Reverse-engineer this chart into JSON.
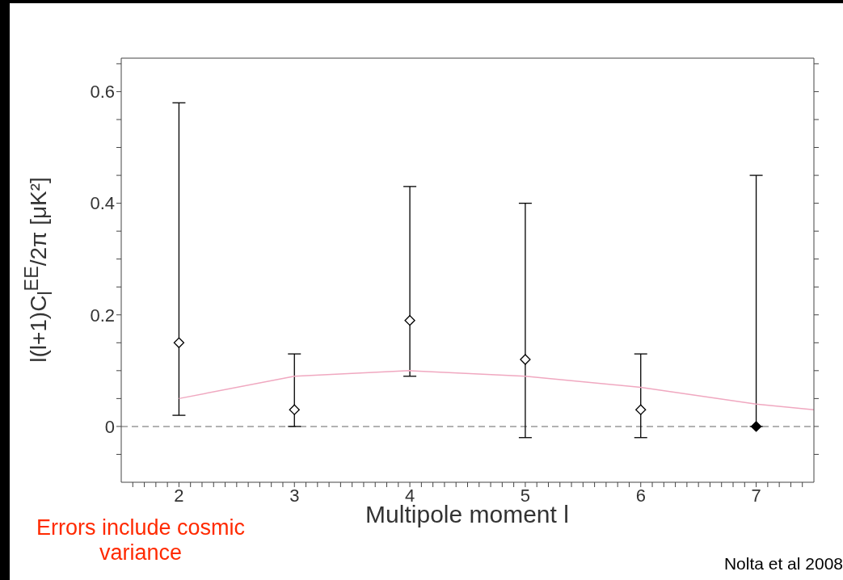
{
  "chart_data": {
    "type": "scatter",
    "xlabel": "Multipole moment l",
    "ylabel": "l(l+1)C$_{l}$$^{EE}$/2π [μK²]",
    "xlim": [
      1.5,
      7.5
    ],
    "xticks": [
      {
        "value": 1.6,
        "label": null
      },
      {
        "value": 1.7,
        "label": null
      },
      {
        "value": 1.8,
        "label": null
      },
      {
        "value": 1.9,
        "label": null
      },
      2,
      {
        "value": 2.1,
        "label": null
      },
      {
        "value": 2.2,
        "label": null
      },
      {
        "value": 2.3,
        "label": null
      },
      {
        "value": 2.4,
        "label": null
      },
      {
        "value": 2.5,
        "label": null
      },
      {
        "value": 2.6,
        "label": null
      },
      {
        "value": 2.7,
        "label": null
      },
      {
        "value": 2.8,
        "label": null
      },
      {
        "value": 2.9,
        "label": null
      },
      3,
      {
        "value": 3.1,
        "label": null
      },
      {
        "value": 3.2,
        "label": null
      },
      {
        "value": 3.3,
        "label": null
      },
      {
        "value": 3.4,
        "label": null
      },
      {
        "value": 3.5,
        "label": null
      },
      {
        "value": 3.6,
        "label": null
      },
      {
        "value": 3.7,
        "label": null
      },
      {
        "value": 3.8,
        "label": null
      },
      {
        "value": 3.9,
        "label": null
      },
      4,
      {
        "value": 4.1,
        "label": null
      },
      {
        "value": 4.2,
        "label": null
      },
      {
        "value": 4.3,
        "label": null
      },
      {
        "value": 4.4,
        "label": null
      },
      {
        "value": 4.5,
        "label": null
      },
      {
        "value": 4.6,
        "label": null
      },
      {
        "value": 4.7,
        "label": null
      },
      {
        "value": 4.8,
        "label": null
      },
      {
        "value": 4.9,
        "label": null
      },
      5,
      {
        "value": 5.1,
        "label": null
      },
      {
        "value": 5.2,
        "label": null
      },
      {
        "value": 5.3,
        "label": null
      },
      {
        "value": 5.4,
        "label": null
      },
      {
        "value": 5.5,
        "label": null
      },
      {
        "value": 5.6,
        "label": null
      },
      {
        "value": 5.7,
        "label": null
      },
      {
        "value": 5.8,
        "label": null
      },
      {
        "value": 5.9,
        "label": null
      },
      6,
      {
        "value": 6.1,
        "label": null
      },
      {
        "value": 6.2,
        "label": null
      },
      {
        "value": 6.3,
        "label": null
      },
      {
        "value": 6.4,
        "label": null
      },
      {
        "value": 6.5,
        "label": null
      },
      {
        "value": 6.6,
        "label": null
      },
      {
        "value": 6.7,
        "label": null
      },
      {
        "value": 6.8,
        "label": null
      },
      {
        "value": 6.9,
        "label": null
      },
      7,
      {
        "value": 7.1,
        "label": null
      },
      {
        "value": 7.2,
        "label": null
      },
      {
        "value": 7.3,
        "label": null
      },
      {
        "value": 7.4,
        "label": null
      }
    ],
    "ylim": [
      -0.1,
      0.66
    ],
    "yticks": [
      {
        "value": -0.05,
        "label": null
      },
      0,
      {
        "value": 0.05,
        "label": null
      },
      {
        "value": 0.1,
        "label": null
      },
      {
        "value": 0.15,
        "label": null
      },
      0.2,
      {
        "value": 0.25,
        "label": null
      },
      {
        "value": 0.3,
        "label": null
      },
      {
        "value": 0.35,
        "label": null
      },
      0.4,
      {
        "value": 0.45,
        "label": null
      },
      {
        "value": 0.5,
        "label": null
      },
      {
        "value": 0.55,
        "label": null
      },
      0.6,
      {
        "value": 0.65,
        "label": null
      }
    ],
    "grid": false,
    "legend": false,
    "series": [
      {
        "color": "#000000",
        "marker": "diamond",
        "x": [
          2,
          3,
          4,
          5,
          6,
          7
        ],
        "values": [
          0.15,
          0.03,
          0.19,
          0.12,
          0.03,
          0
        ],
        "colors": [
          "#ffffff",
          "#ffffff",
          "#ffffff",
          "#ffffff",
          "#ffffff",
          "#000000"
        ],
        "errors": [
          [
            0.02,
            0.58
          ],
          [
            0,
            0.13
          ],
          [
            0.09,
            0.43
          ],
          [
            -0.02,
            0.4
          ],
          [
            -0.02,
            0.13
          ],
          [
            0,
            0.45
          ]
        ]
      },
      {
        "type": "line",
        "color": "#f0a8c0",
        "marker": "none",
        "line_style": "solid",
        "x": [
          2,
          3,
          4,
          5,
          6,
          7,
          7.5
        ],
        "values": [
          0.05,
          0.09,
          0.1,
          0.09,
          0.07,
          0.04,
          0.03
        ]
      }
    ],
    "ref_lines": [
      {
        "axis": "y",
        "value": 0,
        "color": "#999999",
        "line_style": "dashed"
      }
    ],
    "annotations": [
      "Errors include cosmic variance",
      "Nolta et al 2008"
    ]
  }
}
